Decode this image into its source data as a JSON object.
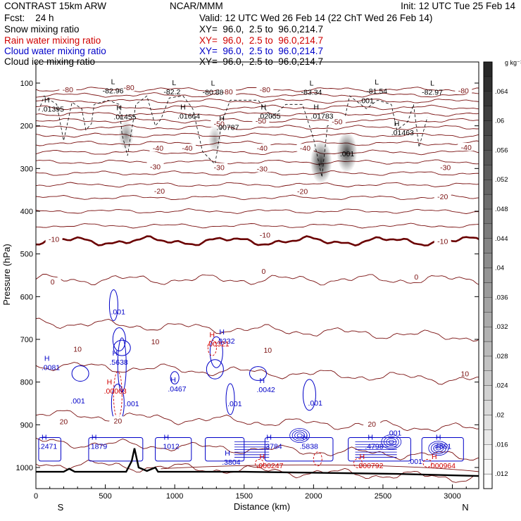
{
  "header": {
    "left": [
      "CONTRAST 15km ARW",
      "Fcst:    24 h"
    ],
    "center_title": "NCAR/MMM",
    "init": "Init: 12 UTC Tue 25 Feb 14",
    "valid": "Valid: 12 UTC Wed 26 Feb 14 (22 ChT Wed 26 Feb 14)"
  },
  "fields": [
    {
      "name": "Snow mixing ratio",
      "xy": "XY=  96.0,  2.5 to  96.0,214.7",
      "color": "#000000"
    },
    {
      "name": "Rain water mixing ratio",
      "xy": "XY=  96.0,  2.5 to  96.0,214.7",
      "color": "#d00000"
    },
    {
      "name": "Cloud water mixing ratio",
      "xy": "XY=  96.0,  2.5 to  96.0,214.7",
      "color": "#0000c8"
    },
    {
      "name": "Cloud ice mixing ratio",
      "xy": "XY=  96.0,  2.5 to  96.0,214.7",
      "color": "#000000"
    }
  ],
  "colors": {
    "temperature": "#7a1010",
    "zero_isotherm": "#6a0000",
    "rain": "#d00000",
    "cloud_water": "#0000c8",
    "snow": "#000000",
    "terrain": "#000000"
  },
  "chart_data": {
    "type": "contour",
    "xlabel": "Distance (km)",
    "ylabel": "Pressure (hPa)",
    "xlim": [
      0,
      3190
    ],
    "ylim": [
      1065,
      45
    ],
    "x_ticks": [
      0,
      500,
      1000,
      1500,
      2000,
      2500,
      3000
    ],
    "x_tick_labels": [
      "0",
      "500",
      "1000",
      "1500",
      "2000",
      "2500",
      "3000"
    ],
    "y_ticks": [
      100,
      200,
      300,
      400,
      500,
      600,
      700,
      800,
      900,
      1000
    ],
    "y_tick_labels": [
      "100",
      "200",
      "300",
      "400",
      "500",
      "600",
      "700",
      "800",
      "900",
      "1000"
    ],
    "end_labels": {
      "left": "S",
      "right": "N"
    },
    "colorbar": {
      "units": "g kg⁻¹",
      "min": 0.01,
      "max": 0.068,
      "ticks": [
        0.012,
        0.016,
        0.02,
        0.024,
        0.028,
        0.032,
        0.036,
        0.04,
        0.044,
        0.048,
        0.052,
        0.056,
        0.06,
        0.064
      ],
      "tick_labels": [
        ".012",
        ".016",
        ".02",
        ".024",
        ".028",
        ".032",
        ".036",
        ".04",
        ".044",
        ".048",
        ".052",
        ".056",
        ".06",
        ".064"
      ]
    },
    "temperature_contours": {
      "levels": [
        -80,
        -75,
        -70,
        -65,
        -60,
        -55,
        -50,
        -45,
        -40,
        -35,
        -30,
        -25,
        -20,
        -15,
        -10,
        -5,
        0,
        5,
        10,
        15,
        20,
        25,
        30
      ],
      "base_pressure": [
        115,
        128,
        142,
        157,
        172,
        188,
        204,
        222,
        241,
        262,
        285,
        311,
        338,
        368,
        400,
        434,
        470,
        560,
        660,
        760,
        875,
        940,
        990
      ],
      "labels": [
        {
          "text": "-80",
          "x": 230,
          "p": 115
        },
        {
          "text": "-80",
          "x": 670,
          "p": 110
        },
        {
          "text": "-80",
          "x": 1380,
          "p": 120
        },
        {
          "text": "-80",
          "x": 1650,
          "p": 115
        },
        {
          "text": "-80",
          "x": 3080,
          "p": 117
        },
        {
          "text": "-50",
          "x": 1320,
          "p": 195
        },
        {
          "text": "-50",
          "x": 1620,
          "p": 188
        },
        {
          "text": "-50",
          "x": 2170,
          "p": 190
        },
        {
          "text": "-40",
          "x": 880,
          "p": 252
        },
        {
          "text": "-40",
          "x": 1090,
          "p": 252
        },
        {
          "text": "-40",
          "x": 1630,
          "p": 252
        },
        {
          "text": "-40",
          "x": 1940,
          "p": 252
        },
        {
          "text": "-40",
          "x": 3100,
          "p": 250
        },
        {
          "text": "-30",
          "x": 860,
          "p": 295
        },
        {
          "text": "-30",
          "x": 1320,
          "p": 297
        },
        {
          "text": "-30",
          "x": 1630,
          "p": 300
        },
        {
          "text": "-30",
          "x": 2950,
          "p": 297
        },
        {
          "text": "-20",
          "x": 890,
          "p": 352
        },
        {
          "text": "-20",
          "x": 1920,
          "p": 353
        },
        {
          "text": "-20",
          "x": 2930,
          "p": 365
        },
        {
          "text": "-10",
          "x": 130,
          "p": 465
        },
        {
          "text": "-10",
          "x": 1650,
          "p": 455
        },
        {
          "text": "-10",
          "x": 2930,
          "p": 470
        },
        {
          "text": "0",
          "x": 120,
          "p": 565
        },
        {
          "text": "0",
          "x": 1640,
          "p": 540
        },
        {
          "text": "0",
          "x": 2740,
          "p": 553
        },
        {
          "text": "10",
          "x": 300,
          "p": 722
        },
        {
          "text": "10",
          "x": 860,
          "p": 705
        },
        {
          "text": "10",
          "x": 1670,
          "p": 725
        },
        {
          "text": "10",
          "x": 3090,
          "p": 780
        },
        {
          "text": "20",
          "x": 200,
          "p": 892
        },
        {
          "text": "20",
          "x": 590,
          "p": 890
        },
        {
          "text": "20",
          "x": 2420,
          "p": 898
        }
      ]
    },
    "series": [
      {
        "name": "Snow mixing ratio",
        "maxima": [
          {
            "text": ".01395",
            "x": 40,
            "p": 165
          },
          {
            "text": ".01455",
            "x": 560,
            "p": 183
          },
          {
            "text": ".01664",
            "x": 1020,
            "p": 182
          },
          {
            "text": ".00787",
            "x": 1300,
            "p": 208
          },
          {
            "text": ".02055",
            "x": 1600,
            "p": 182
          },
          {
            "text": ".01783",
            "x": 1980,
            "p": 182
          },
          {
            "text": ".01463",
            "x": 2560,
            "p": 220
          }
        ],
        "values": [
          {
            "text": "-82.96",
            "x": 480,
            "p": 117
          },
          {
            "text": "-82.2",
            "x": 920,
            "p": 120
          },
          {
            "text": "-80.88",
            "x": 1200,
            "p": 121
          },
          {
            "text": "-83.34",
            "x": 1910,
            "p": 121
          },
          {
            "text": "-81.54",
            "x": 2380,
            "p": 118
          },
          {
            "text": "-82.97",
            "x": 2780,
            "p": 121
          },
          {
            "text": ".001",
            "x": 2330,
            "p": 140
          },
          {
            "text": ".001",
            "x": 2190,
            "p": 265
          }
        ]
      },
      {
        "name": "Cloud ice mixing ratio",
        "shaded_maxima": [
          {
            "x": 650,
            "p": 222,
            "value": 0.035
          },
          {
            "x": 1290,
            "p": 232,
            "value": 0.028
          },
          {
            "x": 2055,
            "p": 285,
            "value": 0.065
          },
          {
            "x": 2240,
            "p": 262,
            "value": 0.06
          }
        ]
      },
      {
        "name": "Cloud water mixing ratio",
        "maxima": [
          {
            "text": ".0081",
            "x": 40,
            "p": 770
          },
          {
            "text": ".5638",
            "x": 530,
            "p": 758
          },
          {
            "text": ".0467",
            "x": 950,
            "p": 820
          },
          {
            "text": ".0332",
            "x": 1300,
            "p": 708
          },
          {
            "text": ".0042",
            "x": 1590,
            "p": 822
          },
          {
            "text": ".2471",
            "x": 20,
            "p": 955
          },
          {
            "text": ".1879",
            "x": 380,
            "p": 955
          },
          {
            "text": ".1012",
            "x": 900,
            "p": 955
          },
          {
            "text": ".3804",
            "x": 1340,
            "p": 992
          },
          {
            "text": ".3784",
            "x": 1640,
            "p": 955
          },
          {
            "text": ".5838",
            "x": 1900,
            "p": 955
          },
          {
            "text": ".4798",
            "x": 2370,
            "p": 955
          },
          {
            "text": ".4861",
            "x": 2860,
            "p": 955
          }
        ],
        "values": [
          {
            "text": ".001",
            "x": 540,
            "p": 635
          },
          {
            "text": ".001",
            "x": 640,
            "p": 850
          },
          {
            "text": ".001",
            "x": 250,
            "p": 843
          },
          {
            "text": ".001",
            "x": 1380,
            "p": 850
          },
          {
            "text": ".001",
            "x": 1960,
            "p": 848
          },
          {
            "text": ".001",
            "x": 2530,
            "p": 918
          },
          {
            "text": ".001",
            "x": 2680,
            "p": 985
          }
        ]
      },
      {
        "name": "Rain water mixing ratio",
        "maxima": [
          {
            "text": ".00063",
            "x": 490,
            "p": 825
          },
          {
            "text": ".00321",
            "x": 1230,
            "p": 715
          },
          {
            "text": ".000247",
            "x": 1590,
            "p": 1000
          },
          {
            "text": ".000792",
            "x": 2310,
            "p": 1000
          },
          {
            "text": ".000964",
            "x": 2830,
            "p": 1000
          }
        ]
      }
    ],
    "terrain_line": "surface pressure"
  }
}
